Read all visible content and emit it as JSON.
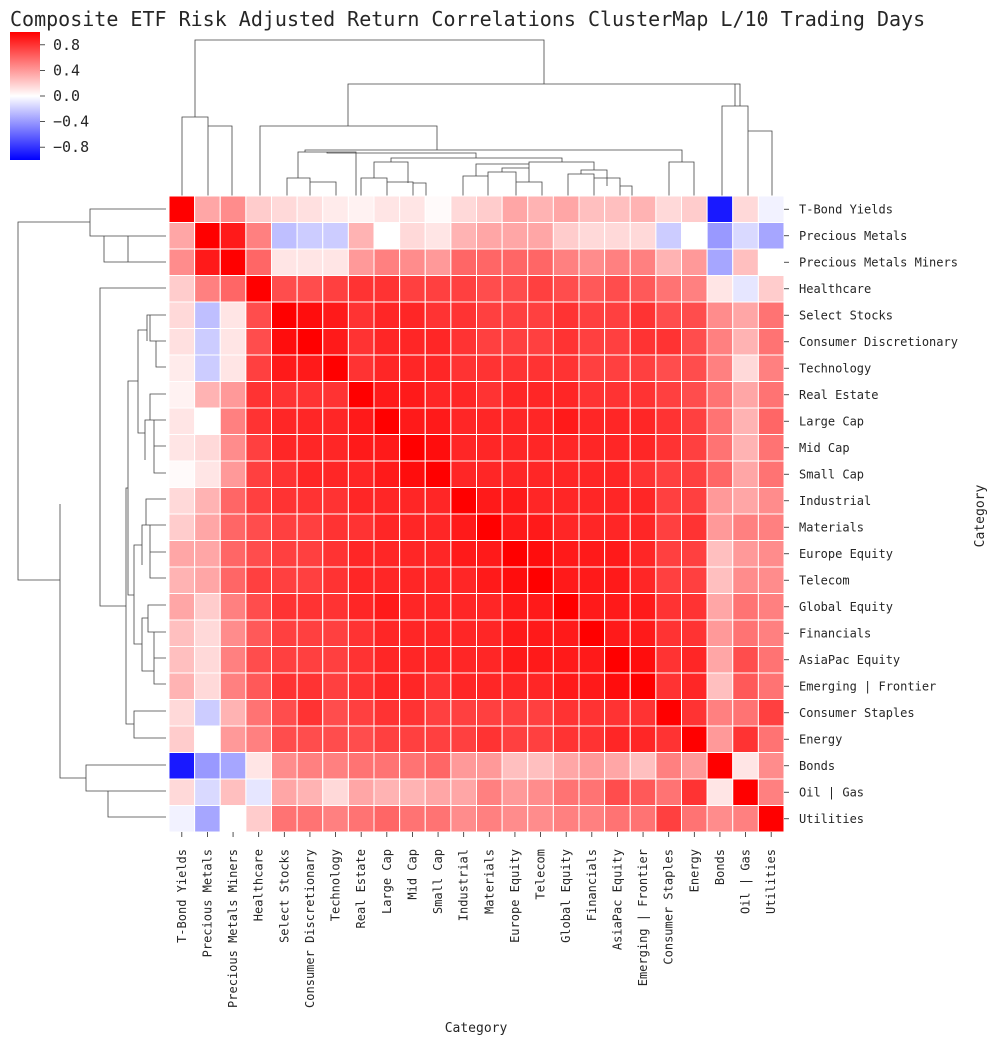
{
  "chart_data": {
    "type": "heatmap",
    "title": "Composite ETF Risk Adjusted Return Correlations ClusterMap L/10 Trading Days",
    "xlabel": "Category",
    "ylabel": "Category",
    "colormap": "bwr",
    "vmin": -1,
    "vmax": 1,
    "colorbar_ticks": [
      {
        "value": 0.8,
        "label": "0.8"
      },
      {
        "value": 0.4,
        "label": "0.4"
      },
      {
        "value": 0.0,
        "label": "0.0"
      },
      {
        "value": -0.4,
        "label": "−0.4"
      },
      {
        "value": -0.8,
        "label": "−0.8"
      }
    ],
    "categories": [
      "T-Bond Yields",
      "Precious Metals",
      "Precious Metals Miners",
      "Healthcare",
      "Select Stocks",
      "Consumer Discretionary",
      "Technology",
      "Real Estate",
      "Large Cap",
      "Mid Cap",
      "Small Cap",
      "Industrial",
      "Materials",
      "Europe Equity",
      "Telecom",
      "Global Equity",
      "Financials",
      "AsiaPac Equity",
      "Emerging | Frontier",
      "Consumer Staples",
      "Energy",
      "Bonds",
      "Oil | Gas",
      "Utilities"
    ],
    "matrix": [
      [
        1.0,
        0.35,
        0.45,
        0.2,
        0.15,
        0.12,
        0.08,
        0.05,
        0.1,
        0.1,
        0.02,
        0.15,
        0.2,
        0.35,
        0.3,
        0.35,
        0.25,
        0.25,
        0.3,
        0.15,
        0.2,
        -0.9,
        0.15,
        -0.05
      ],
      [
        0.35,
        1.0,
        0.9,
        0.5,
        -0.25,
        -0.2,
        -0.2,
        0.3,
        0.0,
        0.15,
        0.1,
        0.3,
        0.35,
        0.35,
        0.35,
        0.2,
        0.15,
        0.15,
        0.15,
        -0.2,
        0.0,
        -0.4,
        -0.15,
        -0.35
      ],
      [
        0.45,
        0.9,
        1.0,
        0.6,
        0.1,
        0.1,
        0.1,
        0.4,
        0.5,
        0.45,
        0.4,
        0.6,
        0.6,
        0.6,
        0.6,
        0.5,
        0.45,
        0.5,
        0.5,
        0.3,
        0.4,
        -0.35,
        0.25,
        0.0
      ],
      [
        0.2,
        0.5,
        0.6,
        1.0,
        0.7,
        0.7,
        0.75,
        0.8,
        0.8,
        0.75,
        0.75,
        0.75,
        0.7,
        0.7,
        0.75,
        0.7,
        0.65,
        0.7,
        0.65,
        0.55,
        0.5,
        0.1,
        -0.1,
        0.2
      ],
      [
        0.15,
        -0.25,
        0.1,
        0.7,
        1.0,
        0.95,
        0.9,
        0.8,
        0.85,
        0.85,
        0.8,
        0.8,
        0.75,
        0.75,
        0.75,
        0.8,
        0.75,
        0.75,
        0.8,
        0.7,
        0.7,
        0.45,
        0.35,
        0.55
      ],
      [
        0.12,
        -0.2,
        0.1,
        0.7,
        0.95,
        1.0,
        0.9,
        0.8,
        0.85,
        0.85,
        0.85,
        0.8,
        0.75,
        0.75,
        0.75,
        0.8,
        0.75,
        0.75,
        0.8,
        0.8,
        0.7,
        0.5,
        0.3,
        0.55
      ],
      [
        0.08,
        -0.2,
        0.1,
        0.75,
        0.9,
        0.9,
        1.0,
        0.8,
        0.85,
        0.85,
        0.85,
        0.8,
        0.8,
        0.8,
        0.8,
        0.8,
        0.75,
        0.75,
        0.75,
        0.7,
        0.7,
        0.5,
        0.15,
        0.5
      ],
      [
        0.05,
        0.3,
        0.4,
        0.8,
        0.8,
        0.8,
        0.8,
        1.0,
        0.9,
        0.9,
        0.85,
        0.85,
        0.8,
        0.85,
        0.85,
        0.85,
        0.8,
        0.8,
        0.8,
        0.75,
        0.7,
        0.55,
        0.35,
        0.55
      ],
      [
        0.1,
        0.0,
        0.5,
        0.8,
        0.85,
        0.85,
        0.85,
        0.9,
        1.0,
        0.9,
        0.9,
        0.85,
        0.85,
        0.85,
        0.85,
        0.9,
        0.85,
        0.85,
        0.85,
        0.8,
        0.75,
        0.55,
        0.3,
        0.6
      ],
      [
        0.1,
        0.15,
        0.45,
        0.75,
        0.85,
        0.85,
        0.85,
        0.9,
        0.9,
        1.0,
        0.95,
        0.85,
        0.85,
        0.85,
        0.85,
        0.85,
        0.85,
        0.85,
        0.85,
        0.8,
        0.75,
        0.55,
        0.3,
        0.55
      ],
      [
        0.02,
        0.1,
        0.4,
        0.75,
        0.8,
        0.85,
        0.85,
        0.85,
        0.9,
        0.95,
        1.0,
        0.85,
        0.85,
        0.85,
        0.85,
        0.85,
        0.85,
        0.85,
        0.8,
        0.75,
        0.75,
        0.6,
        0.35,
        0.55
      ],
      [
        0.15,
        0.3,
        0.6,
        0.75,
        0.8,
        0.8,
        0.8,
        0.85,
        0.85,
        0.85,
        0.85,
        1.0,
        0.9,
        0.9,
        0.85,
        0.85,
        0.85,
        0.85,
        0.85,
        0.75,
        0.75,
        0.4,
        0.35,
        0.45
      ],
      [
        0.2,
        0.35,
        0.6,
        0.7,
        0.75,
        0.75,
        0.8,
        0.8,
        0.85,
        0.85,
        0.85,
        0.9,
        1.0,
        0.9,
        0.9,
        0.85,
        0.85,
        0.85,
        0.85,
        0.75,
        0.8,
        0.4,
        0.5,
        0.5
      ],
      [
        0.35,
        0.35,
        0.6,
        0.7,
        0.75,
        0.75,
        0.8,
        0.85,
        0.85,
        0.85,
        0.85,
        0.9,
        0.9,
        1.0,
        0.95,
        0.9,
        0.9,
        0.9,
        0.85,
        0.75,
        0.75,
        0.25,
        0.4,
        0.45
      ],
      [
        0.3,
        0.35,
        0.6,
        0.75,
        0.75,
        0.75,
        0.8,
        0.85,
        0.85,
        0.85,
        0.85,
        0.85,
        0.9,
        0.95,
        1.0,
        0.9,
        0.9,
        0.9,
        0.85,
        0.75,
        0.75,
        0.25,
        0.45,
        0.45
      ],
      [
        0.35,
        0.2,
        0.5,
        0.7,
        0.8,
        0.8,
        0.8,
        0.85,
        0.9,
        0.85,
        0.85,
        0.85,
        0.85,
        0.9,
        0.9,
        1.0,
        0.9,
        0.9,
        0.9,
        0.8,
        0.8,
        0.35,
        0.55,
        0.5
      ],
      [
        0.25,
        0.15,
        0.45,
        0.65,
        0.75,
        0.75,
        0.75,
        0.8,
        0.85,
        0.85,
        0.85,
        0.85,
        0.85,
        0.9,
        0.9,
        0.9,
        1.0,
        0.9,
        0.9,
        0.8,
        0.8,
        0.4,
        0.55,
        0.5
      ],
      [
        0.25,
        0.15,
        0.5,
        0.7,
        0.75,
        0.75,
        0.75,
        0.8,
        0.85,
        0.85,
        0.85,
        0.85,
        0.85,
        0.9,
        0.9,
        0.9,
        0.9,
        1.0,
        0.95,
        0.8,
        0.85,
        0.35,
        0.7,
        0.55
      ],
      [
        0.3,
        0.15,
        0.5,
        0.65,
        0.8,
        0.8,
        0.75,
        0.8,
        0.85,
        0.85,
        0.8,
        0.85,
        0.85,
        0.85,
        0.85,
        0.9,
        0.9,
        0.95,
        1.0,
        0.8,
        0.85,
        0.25,
        0.65,
        0.55
      ],
      [
        0.15,
        -0.2,
        0.3,
        0.55,
        0.7,
        0.8,
        0.7,
        0.75,
        0.8,
        0.8,
        0.75,
        0.75,
        0.75,
        0.75,
        0.75,
        0.8,
        0.8,
        0.8,
        0.8,
        1.0,
        0.8,
        0.5,
        0.55,
        0.75
      ],
      [
        0.2,
        0.0,
        0.4,
        0.5,
        0.7,
        0.7,
        0.7,
        0.7,
        0.75,
        0.75,
        0.75,
        0.75,
        0.8,
        0.75,
        0.75,
        0.8,
        0.8,
        0.85,
        0.85,
        0.8,
        1.0,
        0.4,
        0.8,
        0.55
      ],
      [
        -0.9,
        -0.4,
        -0.35,
        0.1,
        0.45,
        0.5,
        0.5,
        0.55,
        0.55,
        0.55,
        0.6,
        0.4,
        0.4,
        0.25,
        0.25,
        0.35,
        0.4,
        0.35,
        0.25,
        0.5,
        0.4,
        1.0,
        0.1,
        0.45
      ],
      [
        0.15,
        -0.15,
        0.25,
        -0.1,
        0.35,
        0.3,
        0.15,
        0.35,
        0.3,
        0.3,
        0.35,
        0.35,
        0.5,
        0.4,
        0.45,
        0.55,
        0.55,
        0.7,
        0.65,
        0.55,
        0.8,
        0.1,
        1.0,
        0.5
      ],
      [
        -0.05,
        -0.35,
        0.0,
        0.2,
        0.55,
        0.55,
        0.5,
        0.55,
        0.6,
        0.55,
        0.55,
        0.45,
        0.5,
        0.45,
        0.45,
        0.5,
        0.5,
        0.55,
        0.55,
        0.75,
        0.55,
        0.45,
        0.5,
        1.0
      ]
    ]
  }
}
